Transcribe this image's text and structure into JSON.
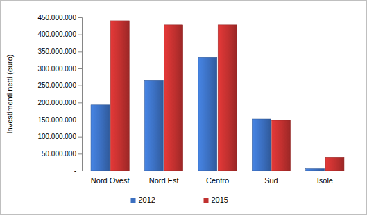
{
  "chart_data": {
    "type": "bar",
    "y_label": "Investimenti netti (euro)",
    "categories": [
      "Nord Ovest",
      "Nord Est",
      "Centro",
      "Sud",
      "Isole"
    ],
    "series": [
      {
        "name": "2012",
        "color": "#3b6fc0",
        "values": [
          193000000,
          265000000,
          332000000,
          152000000,
          7000000
        ]
      },
      {
        "name": "2015",
        "color": "#c0302f",
        "values": [
          440000000,
          428000000,
          428000000,
          148000000,
          40000000
        ]
      }
    ],
    "ylim": [
      0,
      450000000
    ],
    "yticks": [
      {
        "value": 0,
        "label": "-"
      },
      {
        "value": 50000000,
        "label": "50.000.000"
      },
      {
        "value": 100000000,
        "label": "100.000.000"
      },
      {
        "value": 150000000,
        "label": "150.000.000"
      },
      {
        "value": 200000000,
        "label": "200.000.000"
      },
      {
        "value": 250000000,
        "label": "250.000.000"
      },
      {
        "value": 300000000,
        "label": "300.000.000"
      },
      {
        "value": 350000000,
        "label": "350.000.000"
      },
      {
        "value": 400000000,
        "label": "400.000.000"
      },
      {
        "value": 450000000,
        "label": "450.000.000"
      }
    ],
    "grid": false,
    "legend": "bottom"
  }
}
